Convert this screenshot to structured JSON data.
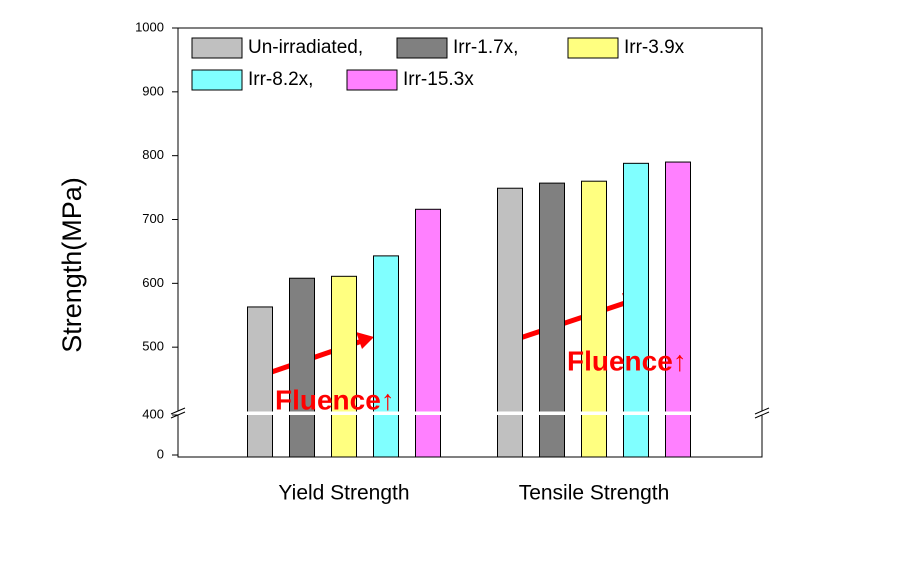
{
  "chart_data": {
    "type": "bar",
    "y_label": "Strength(MPa)",
    "categories": [
      "Yield Strength",
      "Tensile Strength"
    ],
    "series": [
      {
        "name": "Un-irradiated,",
        "color": "#c0c0c0",
        "values": [
          563,
          749
        ]
      },
      {
        "name": "Irr-1.7x,",
        "color": "#808080",
        "values": [
          608,
          757
        ]
      },
      {
        "name": "Irr-3.9x",
        "color": "#ffff80",
        "values": [
          611,
          760
        ]
      },
      {
        "name": "Irr-8.2x,",
        "color": "#80ffff",
        "values": [
          643,
          788
        ]
      },
      {
        "name": "Irr-15.3x",
        "color": "#ff80ff",
        "values": [
          716,
          790
        ]
      }
    ],
    "ylim": [
      0,
      1000
    ],
    "ybreak": 400,
    "yticks": [
      0,
      400,
      500,
      600,
      700,
      800,
      900,
      1000
    ],
    "annotations": [
      "Fluence↑",
      "Fluence↑"
    ],
    "annotation_color": "#ff0000"
  }
}
